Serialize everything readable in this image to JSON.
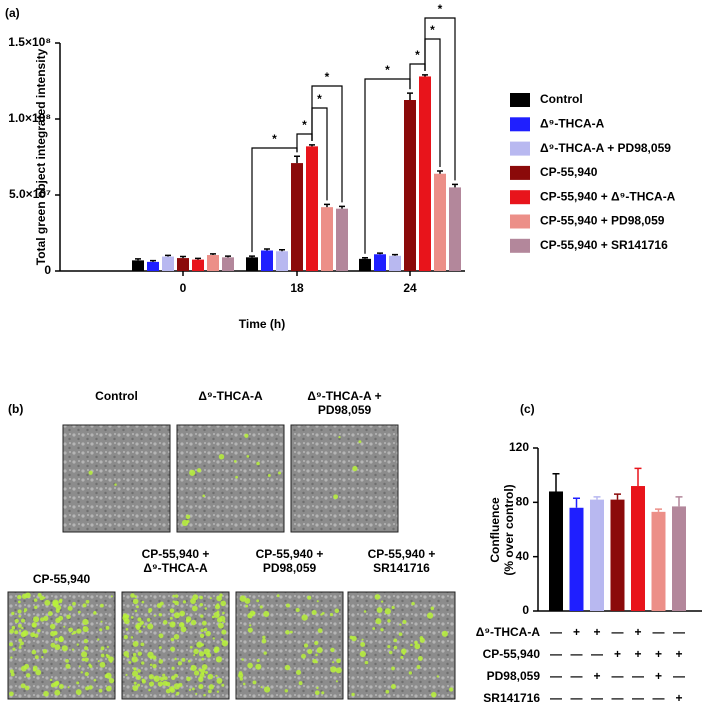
{
  "chart_data": [
    {
      "type": "bar",
      "panel_label": "(a)",
      "y_label": "Total green object integrated intensity",
      "x_label": "Time (h)",
      "categories": [
        "0",
        "18",
        "24"
      ],
      "ylim": [
        0,
        150000000
      ],
      "yticks": [
        0,
        {
          "value": 50000000,
          "label": "5.0×10⁷"
        },
        {
          "value": 100000000,
          "label": "1.0×10⁸"
        },
        {
          "value": 150000000,
          "label": "1.5×10⁸"
        }
      ],
      "series": [
        {
          "name": "Control",
          "color": "#000000",
          "values": [
            7000000,
            9000000,
            8000000
          ],
          "errors": [
            1000000,
            800000,
            700000
          ]
        },
        {
          "name": "Δ⁹-THCA-A",
          "color": "#1f1fff",
          "values": [
            6000000,
            13500000,
            11000000
          ],
          "errors": [
            800000,
            1000000,
            800000
          ]
        },
        {
          "name": "Δ⁹-THCA-A + PD98,059",
          "color": "#b8b8f0",
          "values": [
            9500000,
            13000000,
            10000000
          ],
          "errors": [
            800000,
            1000000,
            800000
          ]
        },
        {
          "name": "CP-55,940",
          "color": "#8b0a0a",
          "values": [
            8500000,
            71000000,
            112500000
          ],
          "errors": [
            1000000,
            4500000,
            4500000
          ]
        },
        {
          "name": "CP-55,940 + Δ⁹-THCA-A",
          "color": "#e8141b",
          "values": [
            7500000,
            82000000,
            128000000
          ],
          "errors": [
            800000,
            1000000,
            1000000
          ]
        },
        {
          "name": "CP-55,940 + PD98,059",
          "color": "#ec8f88",
          "values": [
            10500000,
            42000000,
            64000000
          ],
          "errors": [
            800000,
            1800000,
            1800000
          ]
        },
        {
          "name": "CP-55,940 + SR141716",
          "color": "#b3879b",
          "values": [
            9000000,
            41000000,
            55000000
          ],
          "errors": [
            800000,
            1500000,
            2000000
          ]
        }
      ],
      "annotations": [
        "*",
        "*",
        "*",
        "*",
        "*",
        "*",
        "*",
        "*"
      ]
    },
    {
      "type": "bar",
      "panel_label": "(c)",
      "y_label": [
        "Confluence",
        "(% over control)"
      ],
      "values": [
        88,
        76,
        82,
        82,
        92,
        73,
        77
      ],
      "errors": [
        13,
        7,
        2,
        4,
        13,
        2,
        7
      ],
      "colors": [
        "#000000",
        "#1f1fff",
        "#b8b8f0",
        "#8b0a0a",
        "#e8141b",
        "#ec8f88",
        "#b3879b"
      ],
      "ylim": [
        0,
        120
      ],
      "yticks": [
        0,
        40,
        80,
        120
      ],
      "table": {
        "rows": [
          {
            "label": "Δ⁹-THCA-A",
            "cells": [
              "—",
              "+",
              "+",
              "—",
              "+",
              "—",
              "—"
            ]
          },
          {
            "label": "CP-55,940",
            "cells": [
              "—",
              "—",
              "—",
              "+",
              "+",
              "+",
              "+"
            ]
          },
          {
            "label": "PD98,059",
            "cells": [
              "—",
              "—",
              "+",
              "—",
              "—",
              "+",
              "—"
            ]
          },
          {
            "label": "SR141716",
            "cells": [
              "—",
              "—",
              "—",
              "—",
              "—",
              "—",
              "+"
            ]
          }
        ]
      }
    }
  ],
  "panel_b": {
    "panel_label": "(b)",
    "images": [
      {
        "label": [
          "Control"
        ]
      },
      {
        "label": [
          "Δ⁹-THCA-A"
        ]
      },
      {
        "label": [
          "Δ⁹-THCA-A +",
          "PD98,059"
        ]
      },
      {
        "label": [
          "CP-55,940"
        ]
      },
      {
        "label": [
          "CP-55,940 +",
          "Δ⁹-THCA-A"
        ]
      },
      {
        "label": [
          "CP-55,940 +",
          "PD98,059"
        ]
      },
      {
        "label": [
          "CP-55,940 +",
          "SR141716"
        ]
      }
    ]
  }
}
